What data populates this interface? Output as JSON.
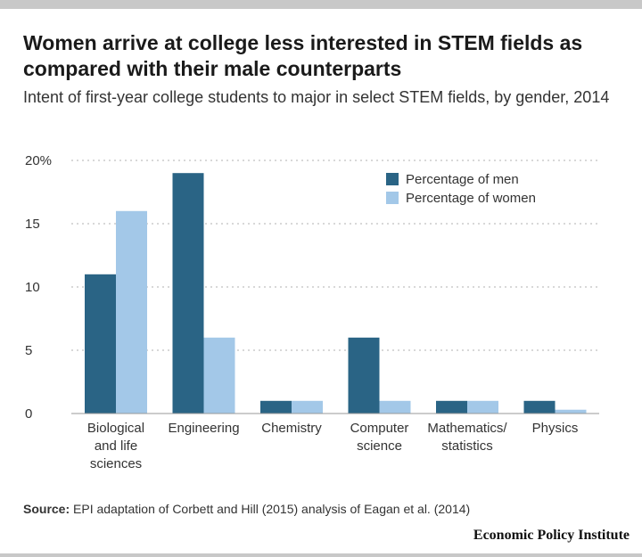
{
  "title": "Women arrive at college less interested in STEM fields as compared with their male counterparts",
  "subtitle": "Intent of first-year college students to major in select STEM fields, by gender, 2014",
  "source_label": "Source:",
  "source_text": "EPI adaptation of Corbett and Hill (2015) analysis of Eagan et al. (2014)",
  "brand": "Economic Policy Institute",
  "colors": {
    "men": "#2a6485",
    "women": "#a3c8e8",
    "grid": "#cccccc",
    "axis": "#999999"
  },
  "chart_data": {
    "type": "bar",
    "categories": [
      [
        "Biological",
        "and life",
        "sciences"
      ],
      [
        "Engineering"
      ],
      [
        "Chemistry"
      ],
      [
        "Computer",
        "science"
      ],
      [
        "Mathematics/",
        "statistics"
      ],
      [
        "Physics"
      ]
    ],
    "series": [
      {
        "name": "Percentage of men",
        "values": [
          11,
          19,
          1,
          6,
          1,
          1
        ]
      },
      {
        "name": "Percentage of women",
        "values": [
          16,
          6,
          1,
          1,
          1,
          0.3
        ]
      }
    ],
    "yticks": [
      {
        "value": 0,
        "label": "0"
      },
      {
        "value": 5,
        "label": "5"
      },
      {
        "value": 10,
        "label": "10"
      },
      {
        "value": 15,
        "label": "15"
      },
      {
        "value": 20,
        "label": "20%"
      }
    ],
    "ylim": [
      0,
      20
    ],
    "xlabel": "",
    "ylabel": "",
    "grid": true,
    "legend_position": "top-right"
  }
}
